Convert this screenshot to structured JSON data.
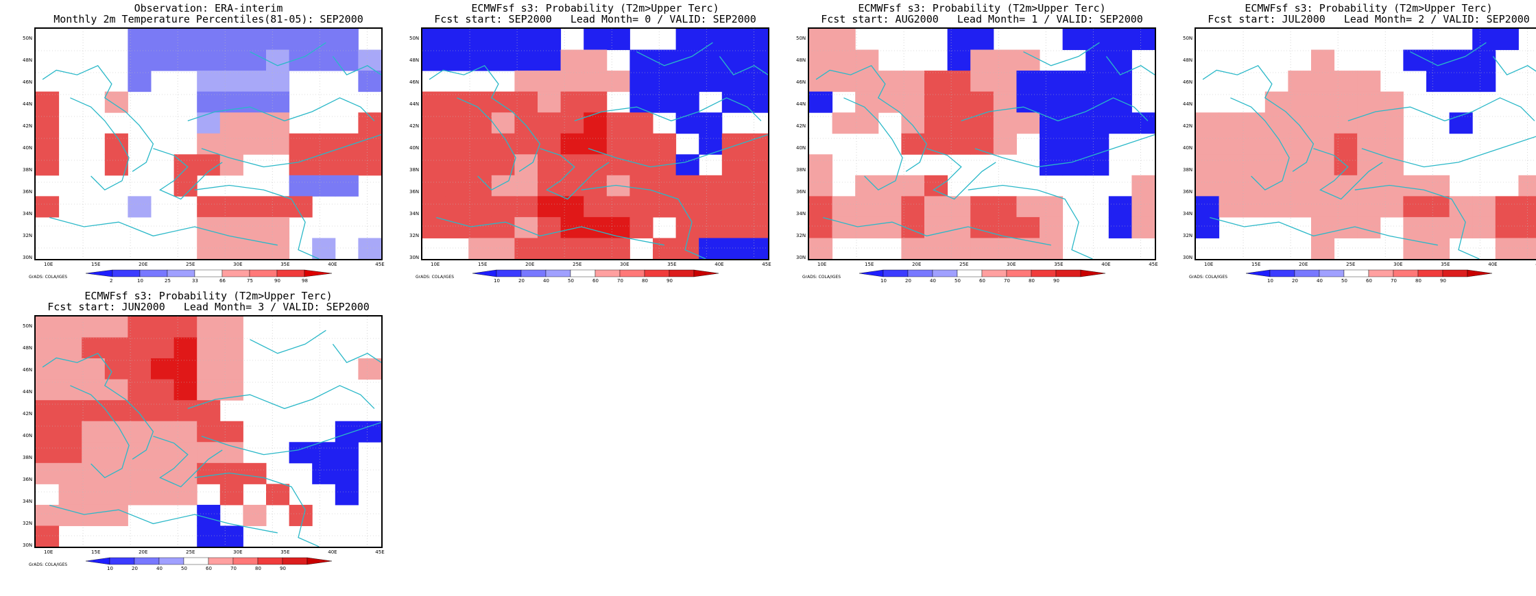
{
  "colors": {
    "coast": "#2ab8c8",
    "grid": "#bbbbbb",
    "frame": "#000000"
  },
  "axes": {
    "lat_ticks": [
      "50N",
      "48N",
      "46N",
      "44N",
      "42N",
      "40N",
      "38N",
      "36N",
      "34N",
      "32N",
      "30N"
    ],
    "lon_ticks": [
      "10E",
      "15E",
      "20E",
      "25E",
      "30E",
      "35E",
      "40E",
      "45E"
    ]
  },
  "credit": "GrADS: COLA/IGES",
  "palettes": {
    "percentile": [
      "#1e1eff",
      "#3c3cff",
      "#7878ff",
      "#a0a0ff",
      "#ffffff",
      "#ffa0a0",
      "#ff7878",
      "#f03c3c",
      "#dc0000"
    ],
    "probability": [
      "#1e1eff",
      "#3c3cff",
      "#7878ff",
      "#a0a0ff",
      "#ffffff",
      "#ffa0a0",
      "#ff7878",
      "#f03c3c",
      "#dc1e1e",
      "#c80000"
    ]
  },
  "colorbars": {
    "percentile": [
      "2",
      "10",
      "25",
      "33",
      "66",
      "75",
      "90",
      "98"
    ],
    "probability": [
      "10",
      "20",
      "40",
      "50",
      "60",
      "70",
      "80",
      "90"
    ]
  },
  "panels": [
    {
      "id": "obs",
      "title_line1": "Observation: ERA-interim",
      "title_line2": "Monthly 2m Temperature Percentiles(81-05): SEP2000",
      "colorbar": "percentile",
      "grid": [
        "WWWWIIIIIIIIIIW",
        "WWWWIIIIIIJIIIJ",
        "WWWWIWWJJJJWWWI",
        "RWWPWWWIIIIWWWW",
        "RWWWWWWJPPPWWWR",
        "RWWRWWWPPPPRRRR",
        "RWWRWWRRPWWRRRR",
        "WWWWWWRWWWWIIIW",
        "RWWWJWWRRRRRWWW",
        "WWWWWWWPPPPWWWW",
        "WWWWWWWPPPPWJWJ"
      ]
    },
    {
      "id": "lead0",
      "title_line1": "ECMWFsf s3: Probability (T2m>Upper Terc)",
      "title_line2": "Fcst start: SEP2000   Lead Month= 0 / VALID: SEP2000",
      "colorbar": "probability",
      "grid": [
        "BBBBBBWBBWWBBBB",
        "BBBBBBPPWBBBBBB",
        "WWWWPPPPPBBBBBB",
        "RRRRRPRRWBBBWBB",
        "RRRPRRRSRRWBBWW",
        "RRRRRRSSRRRWBRR",
        "RRRRPRRRRRRBWRR",
        "RRRPPRRRPRRRRRR",
        "RRRRRSSRRRRRRRR",
        "RRRRPRSSSRWRRRR",
        "WWPPRRRRRWRRBBB"
      ]
    },
    {
      "id": "lead1",
      "title_line1": "ECMWFsf s3: Probability (T2m>Upper Terc)",
      "title_line2": "Fcst start: AUG2000   Lead Month= 1 / VALID: SEP2000",
      "colorbar": "probability",
      "grid": [
        "PPWWWWBBWWWBBBB",
        "PPPWWWBPPPWWBBW",
        "PPPPPRRPPBBBBBW",
        "BWPPPRRRPBBBBBW",
        "WPPWPRRRPPBBBBB",
        "WWWWRRRRPWBBBWW",
        "PWWWWWWWWWBBBWW",
        "PWPPPRWWWWWWWWP",
        "RPPPRPPRRPPWWBP",
        "RPPPRPPRRRPWWBP",
        "PWWWPPPPPPPWWWW"
      ]
    },
    {
      "id": "lead2",
      "title_line1": "ECMWFsf s3: Probability (T2m>Upper Terc)",
      "title_line2": "Fcst start: JUL2000   Lead Month= 2 / VALID: SEP2000",
      "colorbar": "probability",
      "grid": [
        "WWWWWWWWWWWWBBW",
        "WWWWWPWWWBBBBWW",
        "WWWWPPPPWWBBBWW",
        "WWWPPPPPPWWWWWW",
        "PPPPPPPPPWWBWWW",
        "PPPPPPRPPWWWWWW",
        "PPPPPPRPPWWWWWW",
        "PPPPPPPPPPPWWWP",
        "BPPPPPPPPRRPPRR",
        "BWWWWPPPWPPPPRR",
        "WWWWWPWWWPPWWPP"
      ]
    },
    {
      "id": "lead3",
      "title_line1": "ECMWFsf s3: Probability (T2m>Upper Terc)",
      "title_line2": "Fcst start: JUN2000   Lead Month= 3 / VALID: SEP2000",
      "colorbar": "probability",
      "grid": [
        "PPPPRRRPPWWWWWW",
        "PPRRRRSPPWWWWWW",
        "PPPRRSSPPWWWWWP",
        "PPPPRRSPPWWWWWW",
        "RRRRRRRRWWWWWWW",
        "RRPPPPPRRWWWWBB",
        "RRPPPPPPPWWBBBW",
        "PPPPPPPRRRWWBBW",
        "WPPPPPPWRWRWWBW",
        "PPPPWWWBWPWRWWW",
        "RWWWWWWBBWWWWWW"
      ]
    }
  ]
}
